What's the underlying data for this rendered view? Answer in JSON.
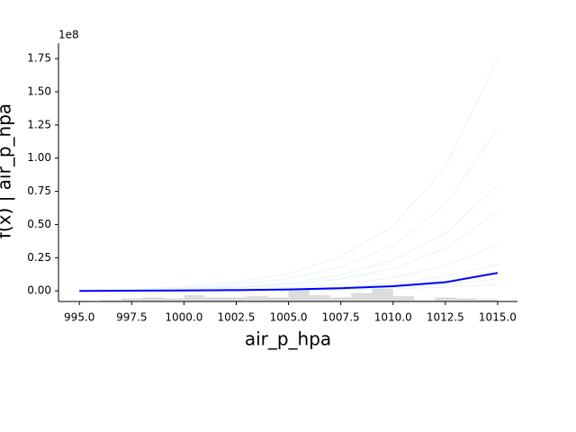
{
  "chart_data": {
    "type": "line",
    "xlabel": "air_p_hpa",
    "ylabel": "f(x) | air_p_hpa",
    "y_offset_label": "1e8",
    "x": [
      995,
      997.5,
      1000,
      1002.5,
      1005,
      1007.5,
      1010,
      1012.5,
      1015
    ],
    "series": [
      {
        "color": "#add8e6",
        "opacity": 0.35,
        "linewidth": 0.8,
        "values": [
          0,
          0.01,
          0.03,
          0.065,
          0.13,
          0.26,
          0.49,
          0.93,
          1.75
        ]
      },
      {
        "color": "#add8e6",
        "opacity": 0.35,
        "linewidth": 0.8,
        "values": [
          0,
          0.007,
          0.021,
          0.046,
          0.093,
          0.18,
          0.34,
          0.65,
          1.22
        ]
      },
      {
        "color": "#add8e6",
        "opacity": 0.35,
        "linewidth": 0.8,
        "values": [
          0,
          0.005,
          0.014,
          0.03,
          0.06,
          0.12,
          0.23,
          0.43,
          0.8
        ]
      },
      {
        "color": "#add8e6",
        "opacity": 0.35,
        "linewidth": 0.8,
        "values": [
          0,
          0.004,
          0.01,
          0.022,
          0.046,
          0.089,
          0.17,
          0.32,
          0.6
        ]
      },
      {
        "color": "#add8e6",
        "opacity": 0.35,
        "linewidth": 0.8,
        "values": [
          0,
          0.002,
          0.006,
          0.013,
          0.027,
          0.052,
          0.099,
          0.19,
          0.35
        ]
      },
      {
        "color": "#add8e6",
        "opacity": 0.35,
        "linewidth": 0.8,
        "values": [
          0,
          0.001,
          0.003,
          0.007,
          0.015,
          0.03,
          0.056,
          0.11,
          0.2
        ]
      },
      {
        "color": "#add8e6",
        "opacity": 0.35,
        "linewidth": 0.8,
        "values": [
          0,
          0.001,
          0.002,
          0.005,
          0.01,
          0.02,
          0.04,
          0.075,
          0.14
        ]
      },
      {
        "color": "#add8e6",
        "opacity": 0.35,
        "linewidth": 0.8,
        "values": [
          0,
          0,
          0.001,
          0.003,
          0.006,
          0.012,
          0.024,
          0.045,
          0.09
        ]
      },
      {
        "color": "#add8e6",
        "opacity": 0.35,
        "linewidth": 0.8,
        "values": [
          0,
          0,
          0.001,
          0.002,
          0.004,
          0.008,
          0.015,
          0.028,
          0.05
        ]
      },
      {
        "color": "#0000ff",
        "opacity": 1,
        "linewidth": 2,
        "values": [
          0,
          0.001,
          0.003,
          0.006,
          0.011,
          0.02,
          0.035,
          0.065,
          0.135
        ]
      }
    ],
    "histogram": {
      "color": "#d3d3d3",
      "bins": [
        995,
        996,
        997,
        998,
        999,
        1000,
        1001,
        1002,
        1003,
        1004,
        1005,
        1006,
        1007,
        1008,
        1009,
        1010,
        1011,
        1012,
        1013,
        1014,
        1015
      ],
      "counts": [
        0,
        1,
        3,
        4,
        3,
        6,
        4,
        4,
        5,
        4,
        11,
        6,
        4,
        8,
        12,
        5,
        1,
        4,
        3,
        2
      ]
    },
    "xlim": [
      994.0,
      1015.95
    ],
    "ylim": [
      -0.08,
      1.866
    ],
    "xticks": [
      {
        "value": 995,
        "label": "995.0"
      },
      997.5,
      {
        "value": 1000,
        "label": "1000.0"
      },
      1002.5,
      {
        "value": 1005,
        "label": "1005.0"
      },
      1007.5,
      {
        "value": 1010,
        "label": "1010.0"
      },
      1012.5,
      {
        "value": 1015,
        "label": "1015.0"
      }
    ],
    "yticks": [
      {
        "value": 0,
        "label": "0.00"
      },
      0.25,
      {
        "value": 0.5,
        "label": "0.50"
      },
      0.75,
      {
        "value": 1,
        "label": "1.00"
      },
      1.25,
      {
        "value": 1.5,
        "label": "1.50"
      },
      1.75
    ],
    "grid": false
  }
}
